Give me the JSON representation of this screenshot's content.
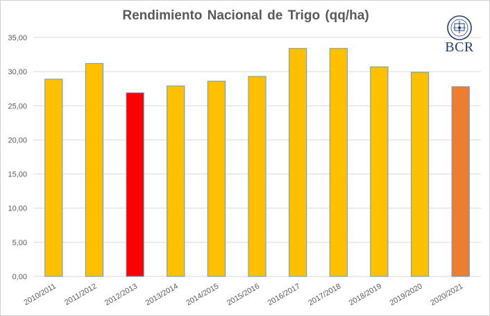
{
  "chart_data": {
    "type": "bar",
    "title": "Rendimiento Nacional de Trigo (qq/ha)",
    "xlabel": "",
    "ylabel": "",
    "categories": [
      "2010/2011",
      "2011/2012",
      "2012/2013",
      "2013/2014",
      "2014/2015",
      "2015/2016",
      "2016/2017",
      "2017/2018",
      "2018/2019",
      "2019/2020",
      "2020/2021"
    ],
    "values": [
      28.9,
      31.2,
      26.9,
      27.9,
      28.6,
      29.3,
      33.4,
      33.4,
      30.7,
      29.9,
      27.8
    ],
    "bar_colors": [
      "#FFC000",
      "#FFC000",
      "#FF0000",
      "#FFC000",
      "#FFC000",
      "#FFC000",
      "#FFC000",
      "#FFC000",
      "#FFC000",
      "#FFC000",
      "#ED7D31"
    ],
    "bar_edge_color": "#5B9BD5",
    "ylim": [
      0,
      35
    ],
    "yticks": [
      "0,00",
      "5,00",
      "10,00",
      "15,00",
      "20,00",
      "25,00",
      "30,00",
      "35,00"
    ],
    "grid": true,
    "legend": false
  },
  "logo": {
    "text": "BCR",
    "seal_text": "BOLSA DE COMERCIO DE ROSARIO"
  }
}
